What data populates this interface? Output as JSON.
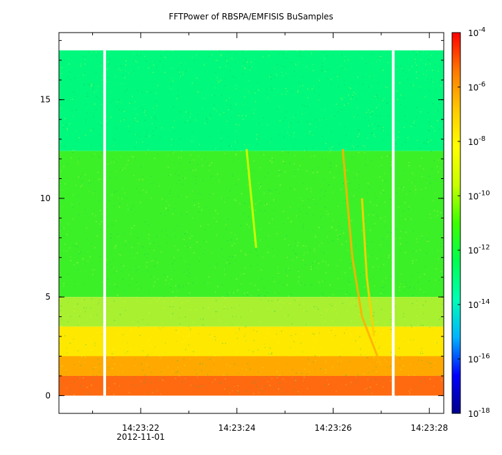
{
  "chart_data": {
    "type": "heatmap",
    "title": "FFTPower of RBSPA/EMFISIS  BuSamples",
    "xlabel": "",
    "ylabel": "",
    "x_time_range": [
      "14:23:20.3",
      "14:23:28.3"
    ],
    "x_ticks": [
      {
        "value": "14:23:22",
        "label": "14:23:22"
      },
      {
        "value": "14:23:24",
        "label": "14:23:24"
      },
      {
        "value": "14:23:26",
        "label": "14:23:26"
      },
      {
        "value": "14:23:28",
        "label": "14:23:28"
      }
    ],
    "x_minor_ticks": [
      "14:23:21",
      "14:23:23",
      "14:23:25",
      "14:23:27"
    ],
    "date_label": "2012-11-01",
    "ylim": [
      -0.9,
      18.4
    ],
    "y_ticks": [
      0,
      5,
      10,
      15
    ],
    "y_minor_interval": 1,
    "data_range_y": [
      0,
      17.5
    ],
    "data_gaps_x": [
      "14:23:21.25",
      "14:23:27.25"
    ],
    "colorbar": {
      "scale": "log",
      "range": [
        1e-18,
        0.0001
      ],
      "ticks": [
        {
          "exp": -4,
          "base": "10",
          "sup": "-4"
        },
        {
          "exp": -6,
          "base": "10",
          "sup": "-6"
        },
        {
          "exp": -8,
          "base": "10",
          "sup": "-8"
        },
        {
          "exp": -10,
          "base": "10",
          "sup": "-10"
        },
        {
          "exp": -12,
          "base": "10",
          "sup": "-12"
        },
        {
          "exp": -14,
          "base": "10",
          "sup": "-14"
        },
        {
          "exp": -16,
          "base": "10",
          "sup": "-16"
        },
        {
          "exp": -18,
          "base": "10",
          "sup": "-18"
        }
      ],
      "colors": [
        "#00008c",
        "#0000ff",
        "#00b4ff",
        "#00ffb4",
        "#00ff50",
        "#3cff00",
        "#c8ff00",
        "#ffff00",
        "#ffc800",
        "#ff7800",
        "#ff0000"
      ]
    },
    "bands": [
      {
        "y_from": 12.4,
        "y_to": 17.5,
        "level": "1e-13",
        "color": "#00f87c"
      },
      {
        "y_from": 5.0,
        "y_to": 12.4,
        "level": "1e-11",
        "color": "#3cf028"
      },
      {
        "y_from": 3.5,
        "y_to": 5.0,
        "level": "1e-10",
        "color": "#a8f030"
      },
      {
        "y_from": 2.0,
        "y_to": 3.5,
        "level": "1e-9",
        "color": "#ffe800"
      },
      {
        "y_from": 1.0,
        "y_to": 2.0,
        "level": "1e-8",
        "color": "#ffa800"
      },
      {
        "y_from": 0,
        "y_to": 1.0,
        "level": "1e-7",
        "color": "#ff6a10"
      }
    ],
    "features": [
      {
        "name": "",
        "points": [
          [
            "14:23:26.2",
            12.5
          ],
          [
            "14:23:26.4",
            7.0
          ],
          [
            "14:23:26.6",
            4.0
          ],
          [
            "14:23:27.0",
            1.5
          ]
        ],
        "color": "#ffb000"
      },
      {
        "name": "",
        "points": [
          [
            "14:23:26.6",
            10.0
          ],
          [
            "14:23:26.7",
            6.0
          ],
          [
            "14:23:26.85",
            3.0
          ]
        ],
        "color": "#ffd000"
      },
      {
        "name": "",
        "points": [
          [
            "14:23:24.2",
            12.5
          ],
          [
            "14:23:24.4",
            7.5
          ]
        ],
        "color": "#d8ff00"
      }
    ]
  }
}
